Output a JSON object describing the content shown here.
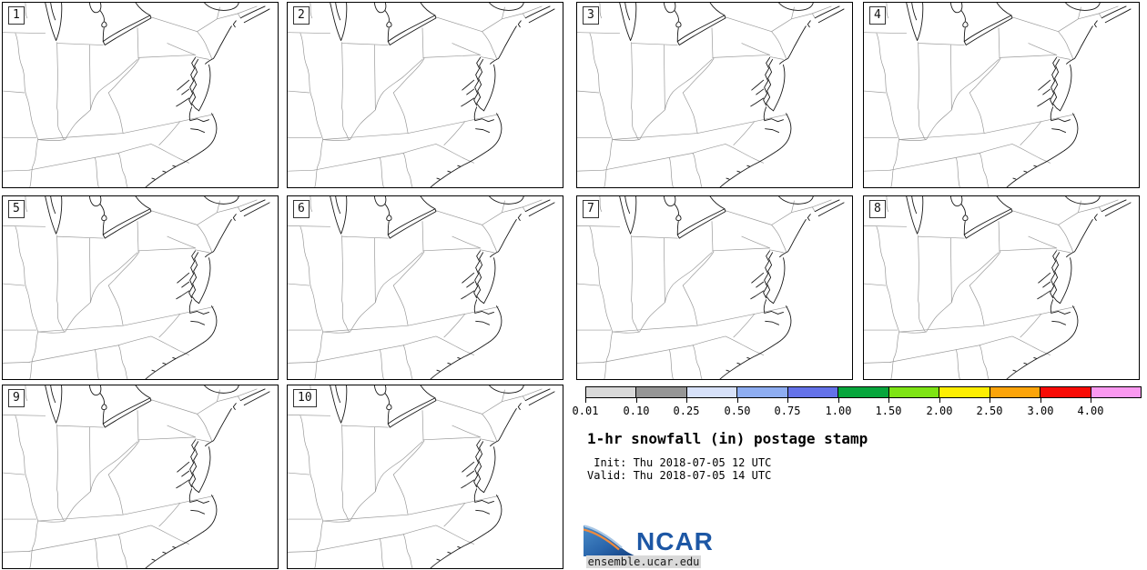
{
  "figure": {
    "title": "1-hr snowfall (in) postage stamp",
    "init_line": " Init: Thu 2018-07-05 12 UTC",
    "valid_line": "Valid: Thu 2018-07-05 14 UTC"
  },
  "panels": [
    {
      "label": "1"
    },
    {
      "label": "2"
    },
    {
      "label": "3"
    },
    {
      "label": "4"
    },
    {
      "label": "5"
    },
    {
      "label": "6"
    },
    {
      "label": "7"
    },
    {
      "label": "8"
    },
    {
      "label": "9"
    },
    {
      "label": "10"
    }
  ],
  "colorbar": {
    "tick_labels": [
      "0.01",
      "0.10",
      "0.25",
      "0.50",
      "0.75",
      "1.00",
      "1.50",
      "2.00",
      "2.50",
      "3.00",
      "4.00"
    ],
    "segment_colors": [
      "#d9d9d9",
      "#969696",
      "#d7e1f9",
      "#8eadf1",
      "#6472e9",
      "#07a63c",
      "#7ee414",
      "#fdee02",
      "#fca40a",
      "#f90b06",
      "#fa99f0"
    ]
  },
  "logo": {
    "name": "NCAR",
    "site": "ensemble.ucar.edu",
    "blue": "#1d57a5",
    "orange": "#f08a3c"
  }
}
